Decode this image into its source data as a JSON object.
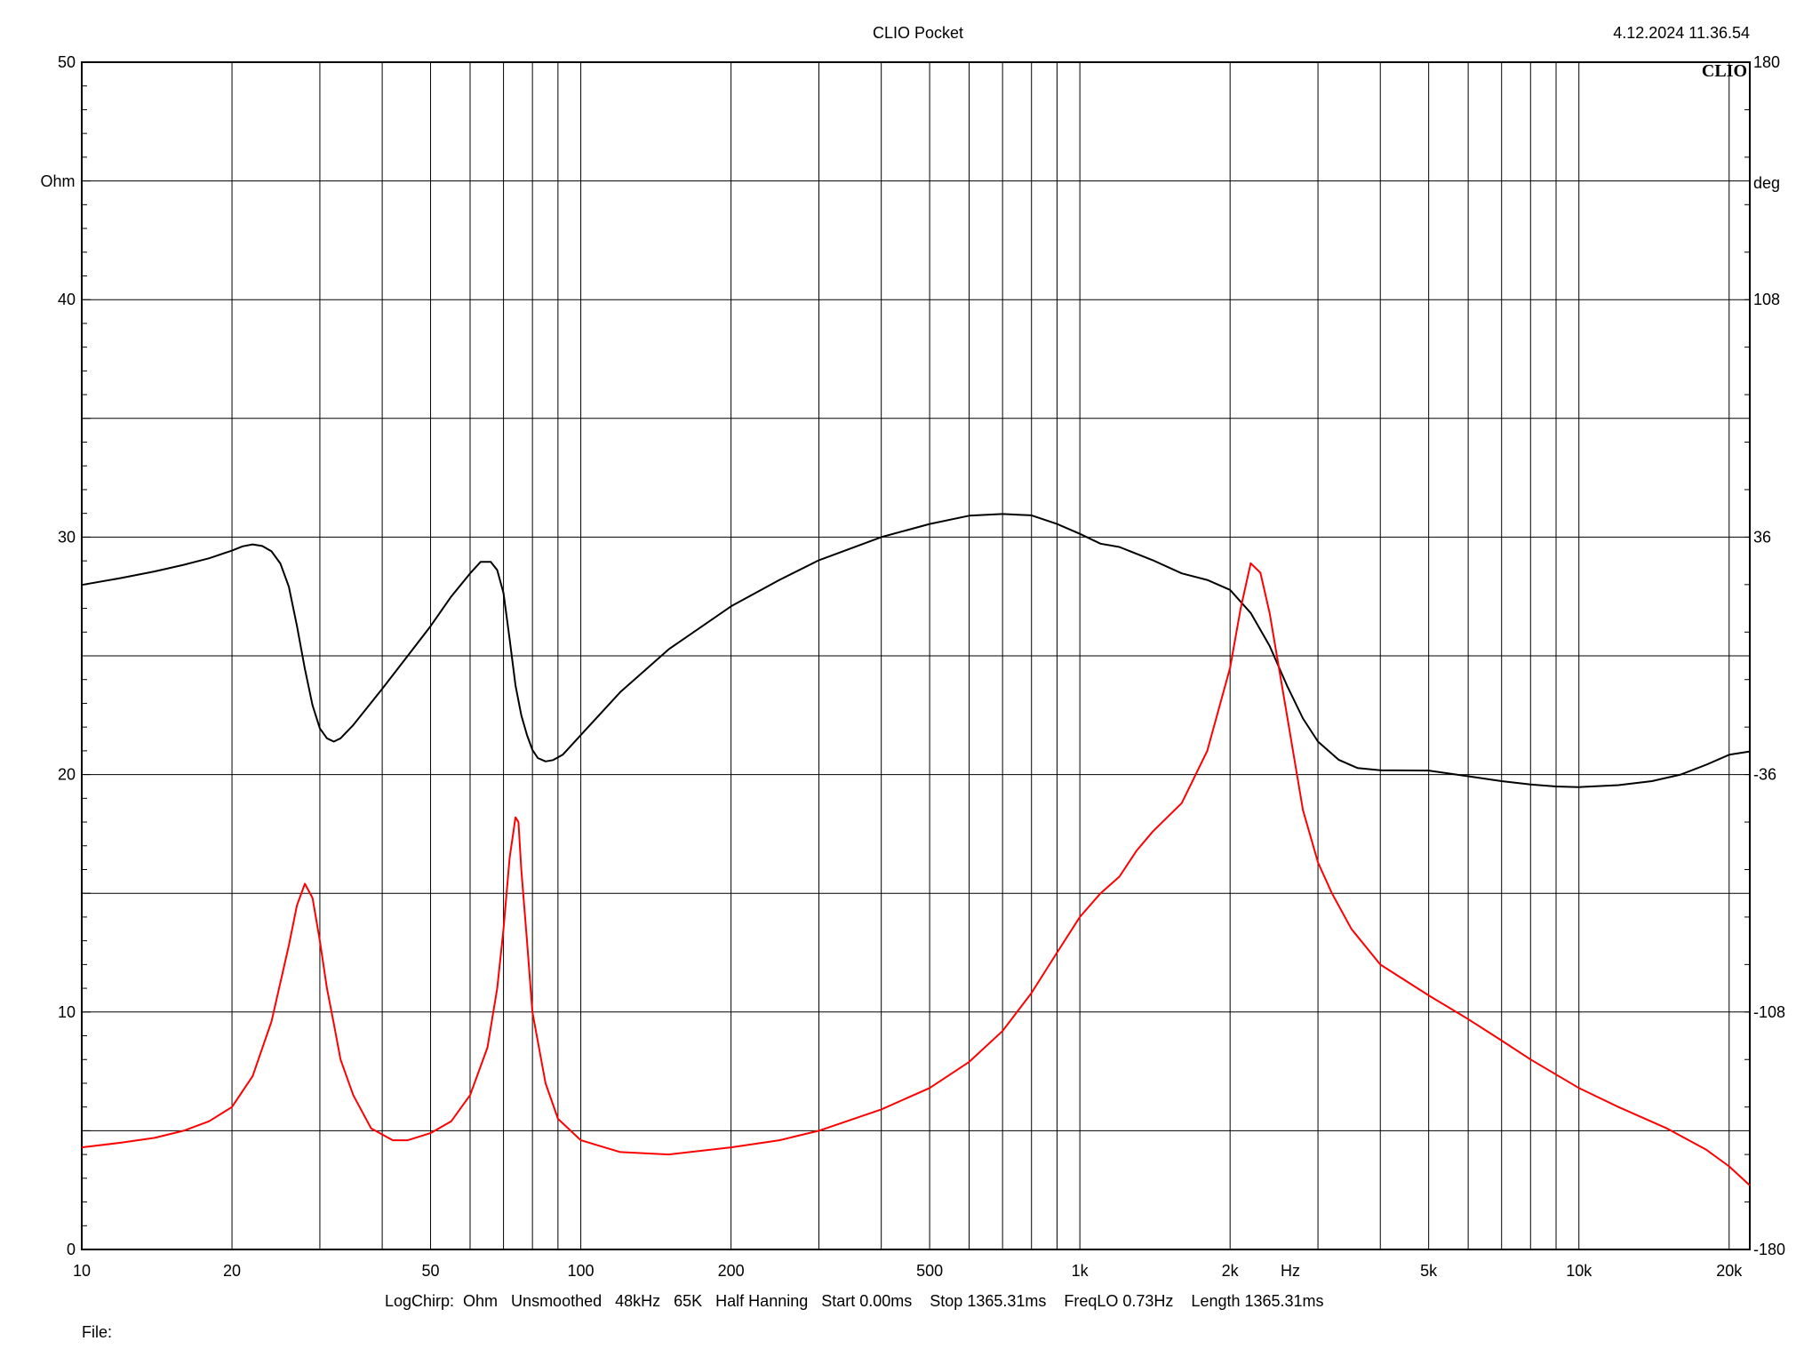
{
  "header": {
    "title": "CLIO Pocket",
    "timestamp": "4.12.2024 11.36.54",
    "logo": "CLIO"
  },
  "footer": {
    "settings": "LogChirp:  Ohm   Unsmoothed   48kHz   65K   Half Hanning   Start 0.00ms    Stop 1365.31ms    FreqLO 0.73Hz    Length 1365.31ms",
    "file_label": "File:"
  },
  "chart_data": {
    "type": "line",
    "title": "CLIO Pocket",
    "xlabel": "Hz",
    "ylabel": "Ohm",
    "y2label": "deg",
    "xscale": "log",
    "xlim": [
      10,
      22000
    ],
    "ylim": [
      0,
      50
    ],
    "y2lim": [
      -180,
      180
    ],
    "grid": true,
    "x_ticks": [
      {
        "value": 10,
        "label": "10"
      },
      {
        "value": 20,
        "label": "20"
      },
      {
        "value": 50,
        "label": "50"
      },
      {
        "value": 100,
        "label": "100"
      },
      {
        "value": 200,
        "label": "200"
      },
      {
        "value": 500,
        "label": "500"
      },
      {
        "value": 1000,
        "label": "1k"
      },
      {
        "value": 2000,
        "label": "2k"
      },
      {
        "value": 5000,
        "label": "5k"
      },
      {
        "value": 10000,
        "label": "10k"
      },
      {
        "value": 20000,
        "label": "20k"
      }
    ],
    "y_ticks": [
      {
        "value": 0,
        "label": "0"
      },
      {
        "value": 10,
        "label": "10"
      },
      {
        "value": 20,
        "label": "20"
      },
      {
        "value": 30,
        "label": "30"
      },
      {
        "value": 40,
        "label": "40"
      },
      {
        "value": 50,
        "label": "50"
      }
    ],
    "y2_ticks": [
      {
        "value": -180,
        "label": "-180"
      },
      {
        "value": -108,
        "label": "-108"
      },
      {
        "value": -36,
        "label": "-36"
      },
      {
        "value": 36,
        "label": "36"
      },
      {
        "value": 108,
        "label": "108"
      },
      {
        "value": 180,
        "label": "180"
      }
    ],
    "series": [
      {
        "name": "",
        "axis": "right",
        "color": "#000000",
        "points": [
          [
            10,
            21.5
          ],
          [
            12,
            23.6
          ],
          [
            14,
            25.6
          ],
          [
            16,
            27.6
          ],
          [
            18,
            29.6
          ],
          [
            20,
            31.9
          ],
          [
            21,
            33.2
          ],
          [
            22,
            33.8
          ],
          [
            23,
            33.3
          ],
          [
            24,
            31.7
          ],
          [
            25,
            28.0
          ],
          [
            26,
            21.0
          ],
          [
            27,
            9.0
          ],
          [
            28,
            -4.0
          ],
          [
            29,
            -15.0
          ],
          [
            30,
            -22.0
          ],
          [
            31,
            -25.0
          ],
          [
            32,
            -26.0
          ],
          [
            33,
            -25.0
          ],
          [
            35,
            -21.0
          ],
          [
            40,
            -10.0
          ],
          [
            45,
            0.0
          ],
          [
            50,
            9.0
          ],
          [
            55,
            18.0
          ],
          [
            60,
            25.0
          ],
          [
            63,
            28.5
          ],
          [
            66,
            28.5
          ],
          [
            68,
            26.0
          ],
          [
            70,
            19.0
          ],
          [
            72,
            5.0
          ],
          [
            74,
            -9.0
          ],
          [
            76,
            -18.0
          ],
          [
            78,
            -24.0
          ],
          [
            80,
            -28.5
          ],
          [
            82,
            -31.0
          ],
          [
            85,
            -32.0
          ],
          [
            88,
            -31.6
          ],
          [
            92,
            -30.0
          ],
          [
            100,
            -24.0
          ],
          [
            120,
            -11.0
          ],
          [
            150,
            2.0
          ],
          [
            200,
            15.0
          ],
          [
            250,
            23.0
          ],
          [
            300,
            29.0
          ],
          [
            400,
            36.0
          ],
          [
            500,
            40.0
          ],
          [
            600,
            42.5
          ],
          [
            700,
            43.0
          ],
          [
            800,
            42.6
          ],
          [
            900,
            40.0
          ],
          [
            1000,
            37.0
          ],
          [
            1100,
            34.0
          ],
          [
            1200,
            33.0
          ],
          [
            1400,
            29.0
          ],
          [
            1600,
            25.0
          ],
          [
            1800,
            23.0
          ],
          [
            2000,
            20.0
          ],
          [
            2200,
            13.0
          ],
          [
            2400,
            3.0
          ],
          [
            2600,
            -9.0
          ],
          [
            2800,
            -19.0
          ],
          [
            3000,
            -26.0
          ],
          [
            3300,
            -31.5
          ],
          [
            3600,
            -34.0
          ],
          [
            4000,
            -34.7
          ],
          [
            5000,
            -34.8
          ],
          [
            6000,
            -36.5
          ],
          [
            7000,
            -38.0
          ],
          [
            8000,
            -39.0
          ],
          [
            9000,
            -39.6
          ],
          [
            10000,
            -39.8
          ],
          [
            12000,
            -39.2
          ],
          [
            14000,
            -38.0
          ],
          [
            16000,
            -36.0
          ],
          [
            18000,
            -33.0
          ],
          [
            20000,
            -30.0
          ],
          [
            22000,
            -29.0
          ]
        ]
      },
      {
        "name": "",
        "axis": "left",
        "color": "#ff0000",
        "points": [
          [
            10,
            4.3
          ],
          [
            12,
            4.5
          ],
          [
            14,
            4.7
          ],
          [
            16,
            5.0
          ],
          [
            18,
            5.4
          ],
          [
            20,
            6.0
          ],
          [
            22,
            7.3
          ],
          [
            24,
            9.6
          ],
          [
            26,
            12.8
          ],
          [
            27,
            14.5
          ],
          [
            28,
            15.4
          ],
          [
            29,
            14.8
          ],
          [
            30,
            13.0
          ],
          [
            31,
            11.0
          ],
          [
            32,
            9.5
          ],
          [
            33,
            8.0
          ],
          [
            35,
            6.5
          ],
          [
            38,
            5.1
          ],
          [
            42,
            4.6
          ],
          [
            45,
            4.6
          ],
          [
            50,
            4.9
          ],
          [
            55,
            5.4
          ],
          [
            60,
            6.5
          ],
          [
            65,
            8.5
          ],
          [
            68,
            11.0
          ],
          [
            70,
            13.5
          ],
          [
            72,
            16.5
          ],
          [
            74,
            18.2
          ],
          [
            75,
            18.0
          ],
          [
            76,
            16.0
          ],
          [
            78,
            13.0
          ],
          [
            80,
            10.0
          ],
          [
            85,
            7.0
          ],
          [
            90,
            5.5
          ],
          [
            100,
            4.6
          ],
          [
            120,
            4.1
          ],
          [
            150,
            4.0
          ],
          [
            200,
            4.3
          ],
          [
            250,
            4.6
          ],
          [
            300,
            5.0
          ],
          [
            400,
            5.9
          ],
          [
            500,
            6.8
          ],
          [
            600,
            7.9
          ],
          [
            700,
            9.2
          ],
          [
            800,
            10.8
          ],
          [
            900,
            12.5
          ],
          [
            1000,
            14.0
          ],
          [
            1100,
            15.0
          ],
          [
            1200,
            15.7
          ],
          [
            1300,
            16.8
          ],
          [
            1400,
            17.6
          ],
          [
            1600,
            18.8
          ],
          [
            1800,
            21.0
          ],
          [
            2000,
            24.5
          ],
          [
            2100,
            27.0
          ],
          [
            2200,
            28.9
          ],
          [
            2300,
            28.5
          ],
          [
            2400,
            26.8
          ],
          [
            2600,
            22.5
          ],
          [
            2800,
            18.5
          ],
          [
            3000,
            16.3
          ],
          [
            3200,
            15.0
          ],
          [
            3500,
            13.5
          ],
          [
            4000,
            12.0
          ],
          [
            5000,
            10.7
          ],
          [
            6000,
            9.7
          ],
          [
            7000,
            8.8
          ],
          [
            8000,
            8.0
          ],
          [
            10000,
            6.8
          ],
          [
            12000,
            6.0
          ],
          [
            15000,
            5.1
          ],
          [
            18000,
            4.2
          ],
          [
            20000,
            3.5
          ],
          [
            22000,
            2.7
          ]
        ]
      }
    ]
  }
}
